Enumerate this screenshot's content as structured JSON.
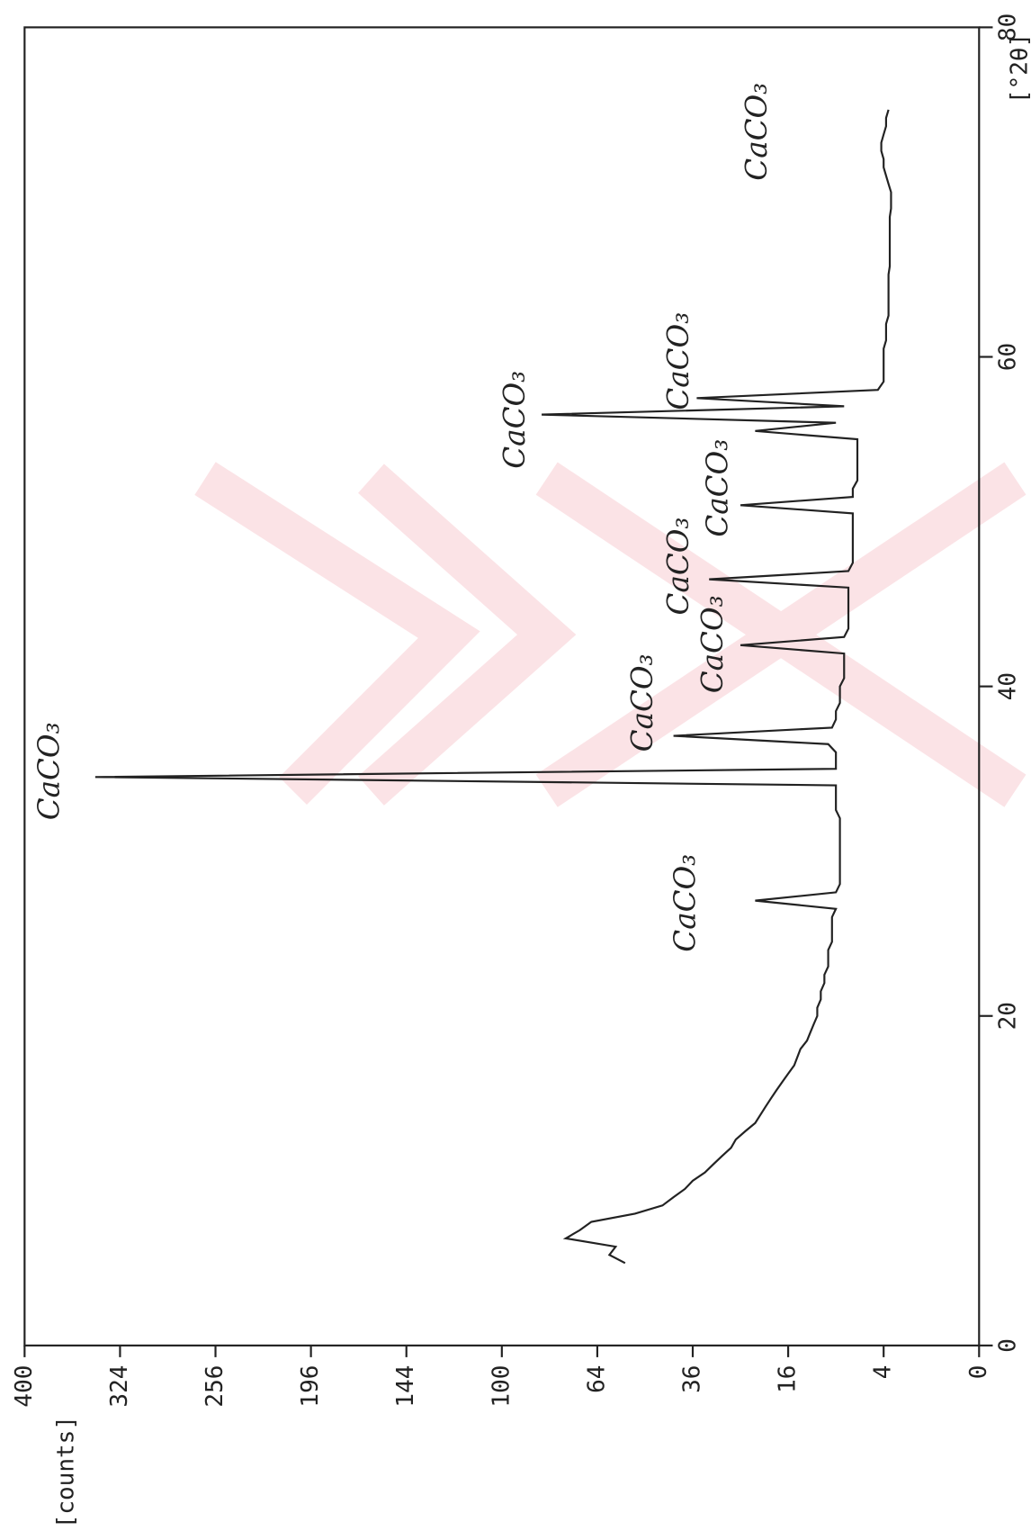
{
  "chart_data": {
    "type": "line",
    "x": [
      5,
      5.5,
      6,
      6.5,
      7,
      7.5,
      8,
      8.5,
      9,
      9.5,
      10,
      10.5,
      11,
      11.5,
      12,
      12.5,
      13,
      13.5,
      14,
      14.5,
      15,
      15.5,
      16,
      16.5,
      17,
      17.5,
      18,
      18.5,
      19,
      19.5,
      20,
      20.5,
      21,
      21.5,
      22,
      22.5,
      23,
      23.5,
      24,
      24.5,
      25,
      25.5,
      26,
      26.5,
      27,
      27.5,
      28,
      28.5,
      29,
      29.5,
      30,
      30.5,
      31,
      31.5,
      32,
      32.5,
      33,
      33.5,
      34,
      34.5,
      35,
      35.5,
      36,
      36.5,
      37,
      37.5,
      38,
      38.5,
      39,
      39.5,
      40,
      40.5,
      41,
      41.5,
      42,
      42.5,
      43,
      43.5,
      44,
      44.5,
      45,
      45.5,
      46,
      46.5,
      47,
      47.5,
      48,
      48.5,
      49,
      49.5,
      50,
      50.5,
      51,
      51.5,
      52,
      52.5,
      53,
      53.5,
      54,
      54.5,
      55,
      55.5,
      56,
      56.5,
      57,
      57.5,
      58,
      58.5,
      59,
      59.5,
      60,
      60.5,
      61,
      61.5,
      62,
      62.5,
      63,
      63.5,
      64,
      64.5,
      65,
      65.5,
      66,
      66.5,
      67,
      67.5,
      68,
      68.5,
      69,
      69.5,
      70,
      70.5,
      71,
      71.5,
      72,
      72.5,
      73,
      73.5,
      74,
      74.5,
      75
    ],
    "series": [
      {
        "color": "#222222",
        "values": [
          55,
          60,
          58,
          75,
          70,
          66,
          52,
          44,
          41,
          38,
          36,
          33,
          31,
          29,
          27,
          26,
          24,
          22,
          21,
          20,
          19,
          18,
          17,
          16,
          15,
          14.5,
          14,
          13,
          12.5,
          12,
          11.5,
          11.5,
          11,
          11,
          10.5,
          10.5,
          10,
          10,
          10,
          9.5,
          9.5,
          9.5,
          9.5,
          9,
          22,
          9,
          8.5,
          8.5,
          8.5,
          8.5,
          8.5,
          8.5,
          8.5,
          8.5,
          8.5,
          9,
          9,
          9,
          9,
          343,
          9,
          9,
          9,
          10,
          41,
          9.5,
          9,
          9,
          8.5,
          8.5,
          8.5,
          8,
          8,
          8,
          8,
          25,
          8,
          7.5,
          7.5,
          7.5,
          7.5,
          7.5,
          7.5,
          32,
          7.5,
          7,
          7,
          7,
          7,
          7,
          7,
          7,
          25,
          7,
          7,
          6.5,
          6.5,
          6.5,
          6.5,
          6.5,
          6.5,
          22,
          9,
          84,
          8,
          35,
          4.5,
          4,
          4,
          4,
          4,
          4,
          3.8,
          3.8,
          3.8,
          3.6,
          3.6,
          3.6,
          3.6,
          3.6,
          3.6,
          3.5,
          3.5,
          3.5,
          3.5,
          3.5,
          3.5,
          3.5,
          3.4,
          3.4,
          3.4,
          3.6,
          3.8,
          4,
          4,
          4.2,
          4.2,
          4,
          3.8,
          3.8,
          3.6
        ]
      }
    ],
    "xlabel": "[°2θ]",
    "ylabel": "[counts]",
    "xlim": [
      0,
      80
    ],
    "xticks": [
      0,
      20,
      40,
      60,
      80
    ],
    "ylim": [
      0,
      400
    ],
    "yticks": [
      0,
      4,
      16,
      36,
      64,
      100,
      144,
      196,
      256,
      324,
      400
    ],
    "yscale": "sqrt",
    "annotations": [
      "CaCO₃",
      "CaCO₃",
      "CaCO₃",
      "CaCO₃",
      "CaCO₃",
      "CaCO₃",
      "CaCO₃",
      "CaCO₃",
      "CaCO₃"
    ]
  }
}
